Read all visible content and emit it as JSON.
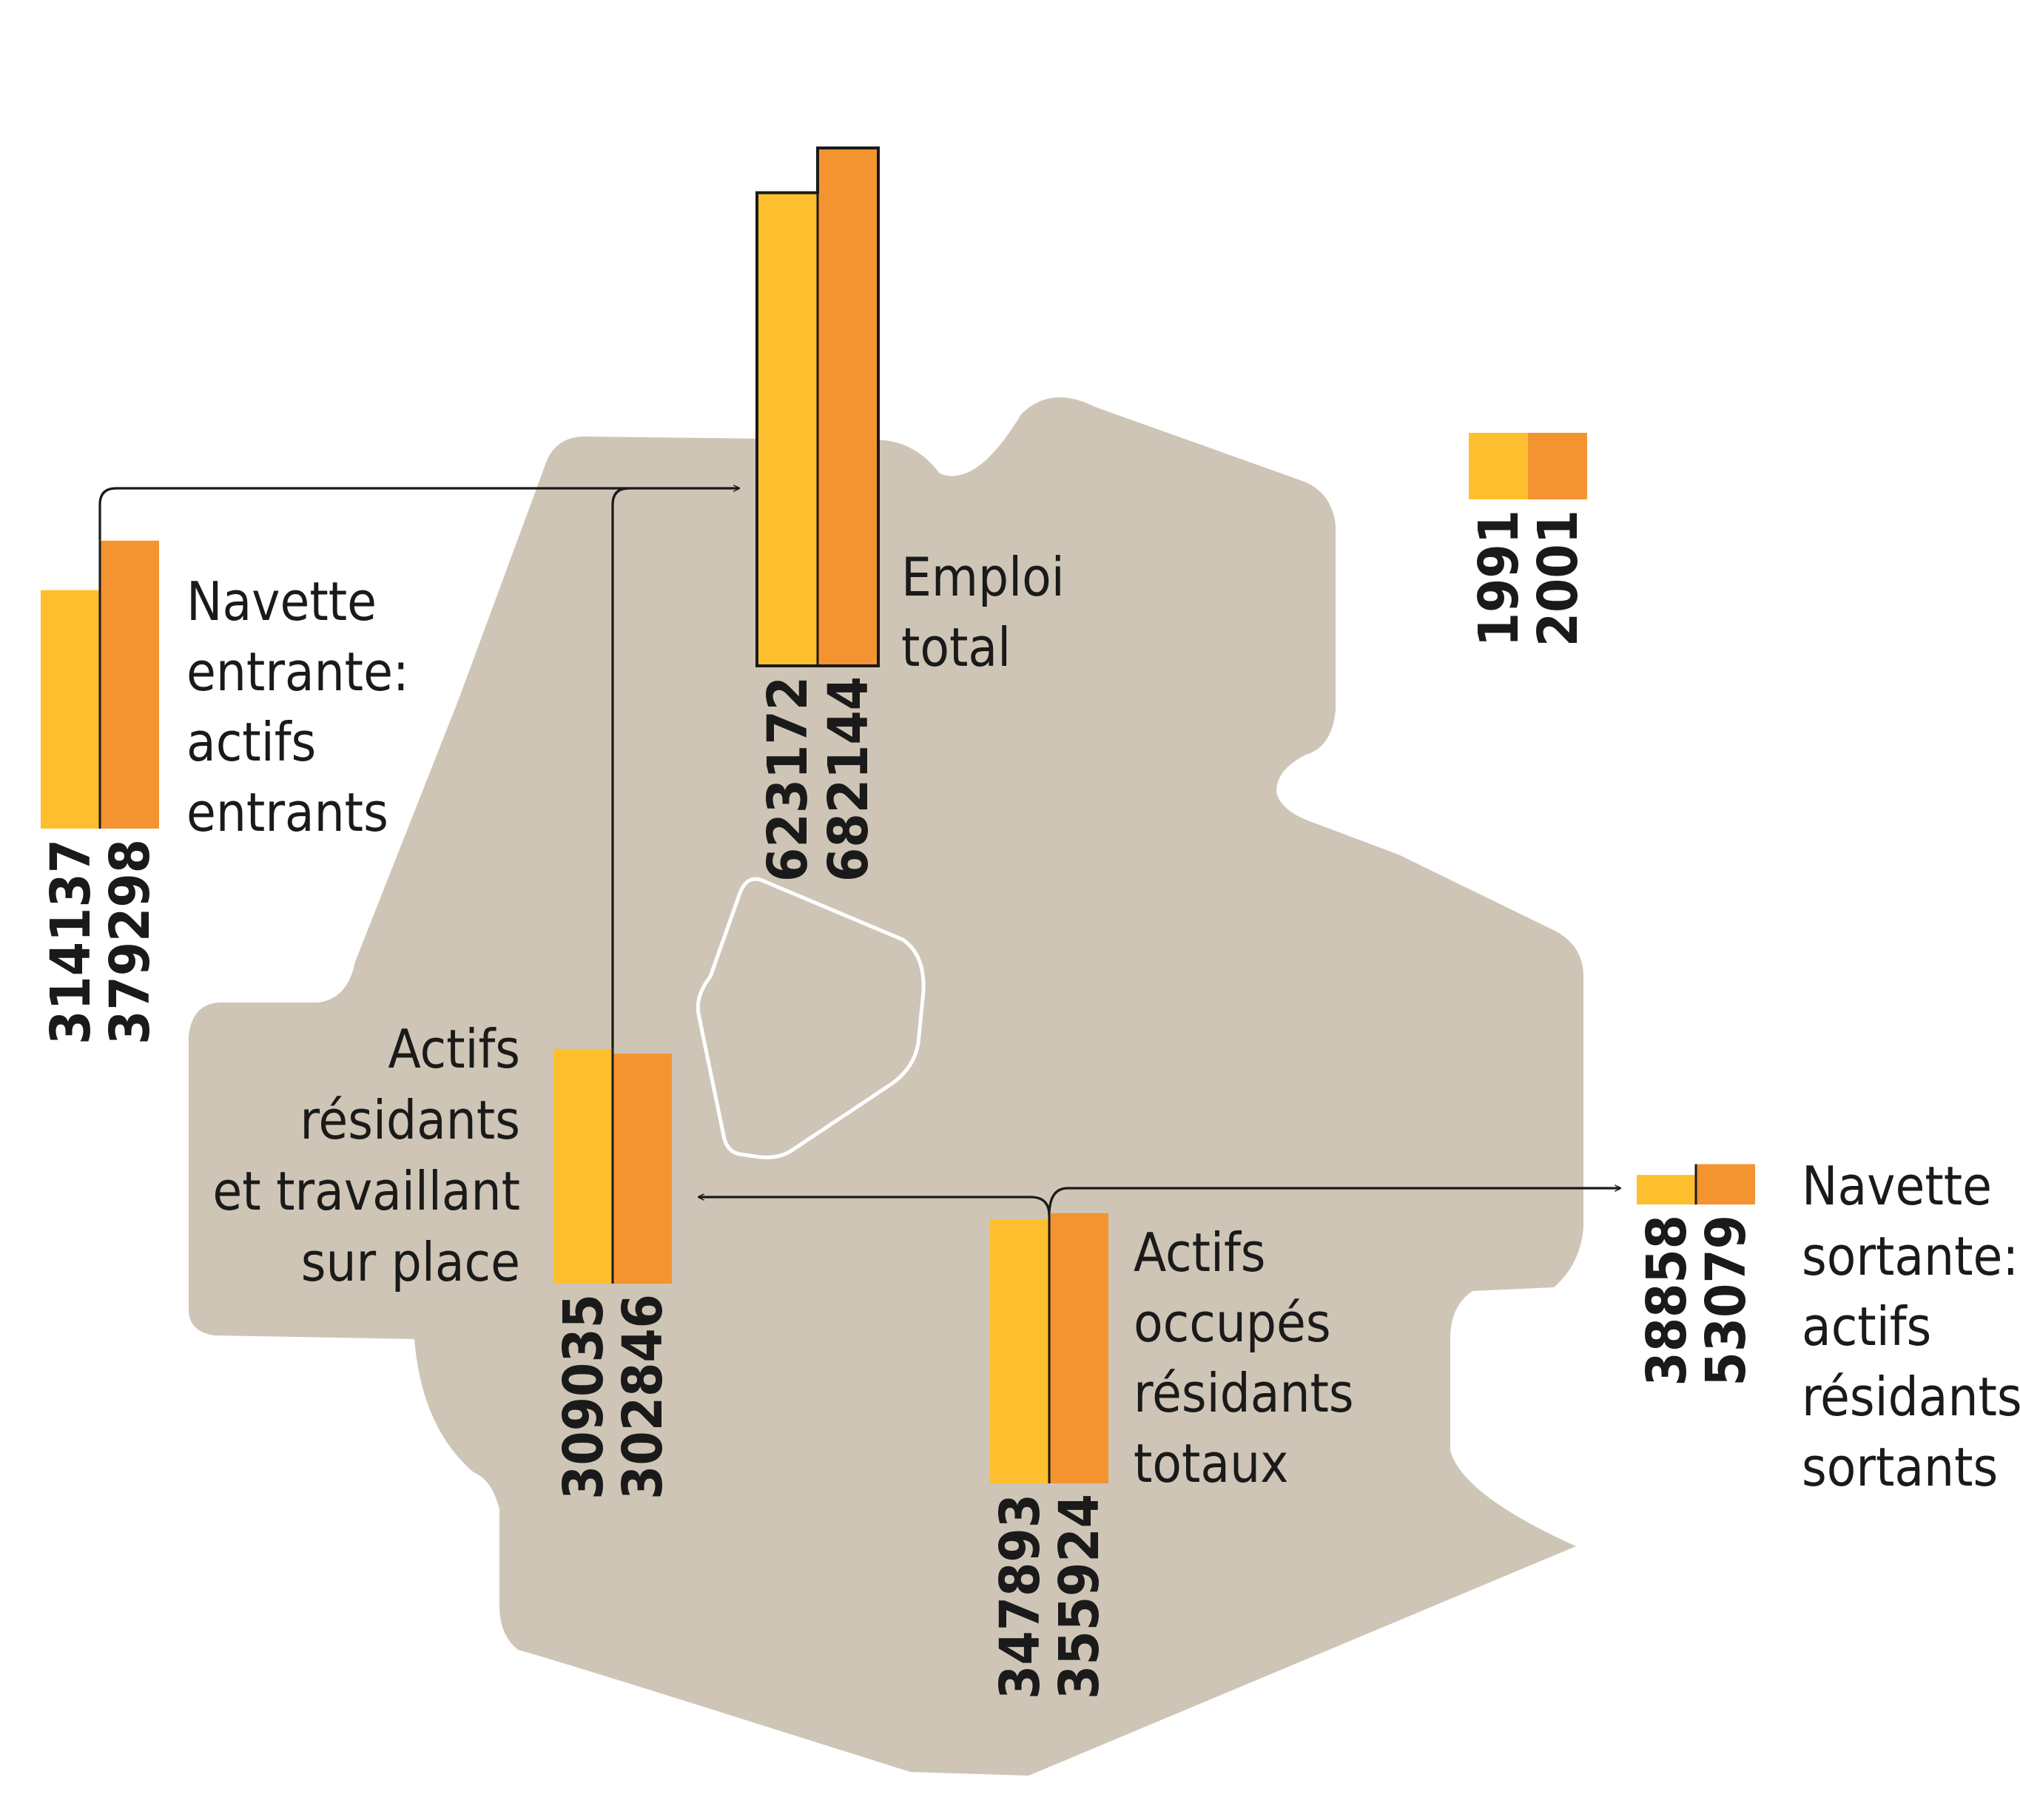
{
  "chart_data": {
    "type": "bar",
    "map": {
      "background_color": "#cec5b6",
      "inner_outline_color": "#ffffff"
    },
    "series": [
      {
        "name": "1991",
        "color": "#fdbf2d"
      },
      {
        "name": "2001",
        "color": "#f39431"
      }
    ],
    "legend": {
      "labels": [
        "1991",
        "2001"
      ],
      "placement": "top-right"
    },
    "groups": [
      {
        "id": "emploi",
        "label_lines": [
          "Emploi",
          "total"
        ],
        "values": [
          623172,
          682144
        ],
        "value_labels": [
          "623172",
          "682144"
        ],
        "outlined": true
      },
      {
        "id": "entrante",
        "label_lines": [
          "Navette",
          "entrante:",
          "actifs",
          "entrants"
        ],
        "values": [
          314137,
          379298
        ],
        "value_labels": [
          "314137",
          "379298"
        ]
      },
      {
        "id": "surplace",
        "label_lines": [
          "Actifs",
          "résidants",
          "et travaillant",
          "sur place"
        ],
        "values": [
          309035,
          302846
        ],
        "value_labels": [
          "309035",
          "302846"
        ]
      },
      {
        "id": "occupes",
        "label_lines": [
          "Actifs",
          "occupés",
          "résidants",
          "totaux"
        ],
        "values": [
          347893,
          355924
        ],
        "value_labels": [
          "347893",
          "355924"
        ]
      },
      {
        "id": "sortante",
        "label_lines": [
          "Navette",
          "sortante:",
          "actifs",
          "résidants",
          "sortants"
        ],
        "values": [
          38858,
          53079
        ],
        "value_labels": [
          "38858",
          "53079"
        ]
      }
    ],
    "flows": [
      {
        "from": "entrante",
        "to": "emploi"
      },
      {
        "from": "surplace",
        "to": "emploi"
      },
      {
        "from": "occupes",
        "to": "surplace"
      },
      {
        "from": "occupes",
        "to": "sortante"
      }
    ]
  }
}
